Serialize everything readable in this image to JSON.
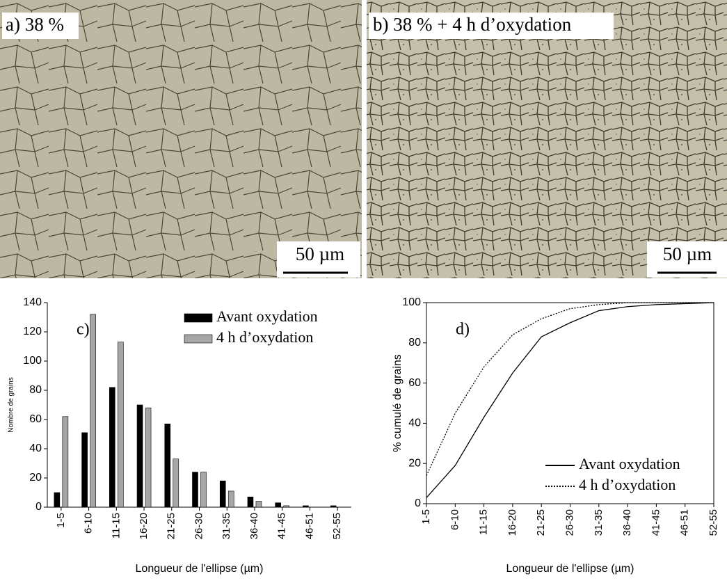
{
  "images": [
    {
      "label": "a) 38 %",
      "scale": "50 µm"
    },
    {
      "label": "b) 38 % + 4 h d’oxydation",
      "scale": "50 µm"
    }
  ],
  "chart_data": [
    {
      "type": "bar",
      "annotation": "c)",
      "ylabel": "Nombre de grains",
      "xlabel": "Longueur de l'ellipse (µm)",
      "categories": [
        "1-5",
        "6-10",
        "11-15",
        "16-20",
        "21-25",
        "26-30",
        "31-35",
        "36-40",
        "41-45",
        "46-51",
        "52-55"
      ],
      "series": [
        {
          "name": "Avant oxydation",
          "color": "#000000",
          "values": [
            10,
            51,
            82,
            70,
            57,
            24,
            18,
            7,
            3,
            1,
            1
          ]
        },
        {
          "name": "4 h d’oxydation",
          "color": "#a6a6a6",
          "values": [
            62,
            132,
            113,
            68,
            33,
            24,
            11,
            4,
            1,
            0,
            0
          ]
        }
      ],
      "ylim": [
        0,
        140
      ],
      "yticks": [
        0,
        20,
        40,
        60,
        80,
        100,
        120,
        140
      ],
      "legend": "upper right"
    },
    {
      "type": "line",
      "annotation": "d)",
      "ylabel": "% cumulé de grains",
      "xlabel": "Longueur de l'ellipse (µm)",
      "categories": [
        "1-5",
        "6-10",
        "11-15",
        "16-20",
        "21-25",
        "26-30",
        "31-35",
        "36-40",
        "41-45",
        "46-51",
        "52-55"
      ],
      "series": [
        {
          "name": "Avant oxydation",
          "color": "#000000",
          "dash": "solid",
          "values": [
            3,
            19,
            43,
            65,
            83,
            90,
            96,
            98,
            99,
            99.5,
            100
          ]
        },
        {
          "name": "4 h d’oxydation",
          "color": "#000000",
          "dash": "dotted",
          "values": [
            14,
            45,
            68,
            84,
            92,
            97,
            99,
            100,
            100,
            100,
            100
          ]
        }
      ],
      "ylim": [
        0,
        100
      ],
      "yticks": [
        0,
        20,
        40,
        60,
        80,
        100
      ],
      "legend": "lower right"
    }
  ]
}
